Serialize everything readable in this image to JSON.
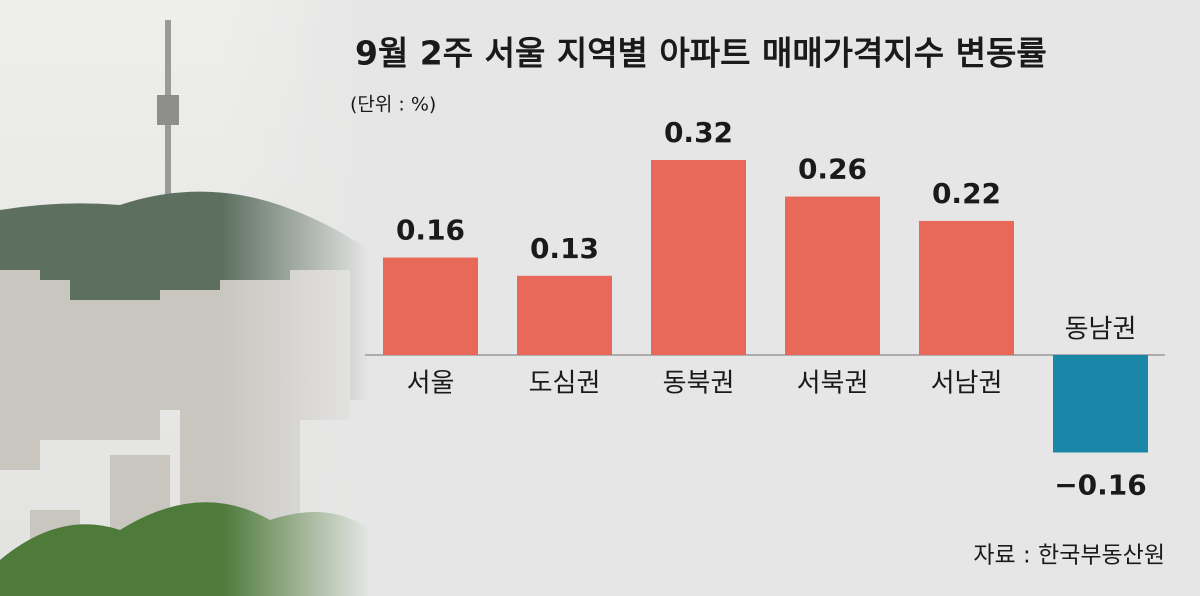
{
  "chart_data": {
    "type": "bar",
    "title": "9월 2주 서울 지역별 아파트 매매가격지수 변동률",
    "subtitle": "(단위 : %)",
    "source": "자료 : 한국부동산원",
    "categories": [
      "서울",
      "도심권",
      "동북권",
      "서북권",
      "서남권",
      "동남권"
    ],
    "values": [
      0.16,
      0.13,
      0.32,
      0.26,
      0.22,
      -0.16
    ],
    "value_labels": [
      "0.16",
      "0.13",
      "0.32",
      "0.26",
      "0.22",
      "−0.16"
    ],
    "color": "#e8695a",
    "negative_color": "#1a86a8"
  }
}
